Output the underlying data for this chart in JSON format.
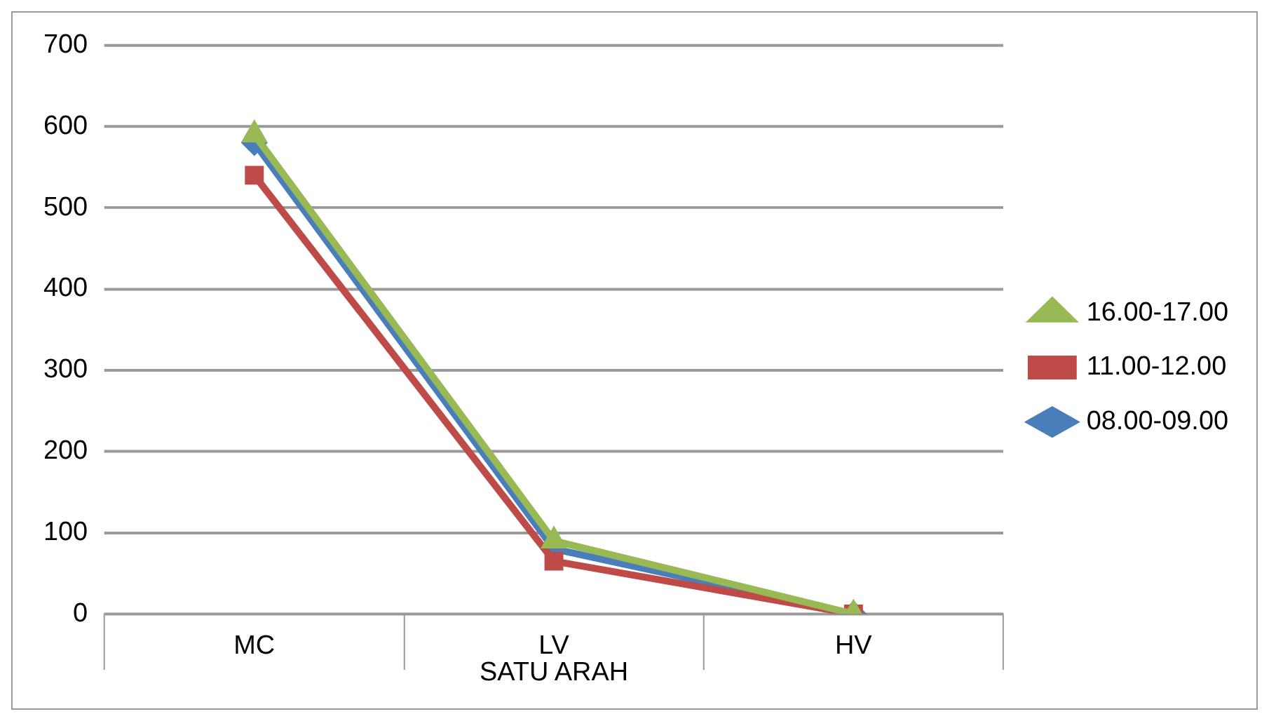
{
  "chart_data": {
    "type": "line",
    "categories": [
      "MC",
      "LV",
      "HV"
    ],
    "xlabel": "SATU ARAH",
    "ylim": [
      0,
      700
    ],
    "yticks": [
      0,
      100,
      200,
      300,
      400,
      500,
      600,
      700
    ],
    "grid": "y",
    "legend": "right",
    "line_style": "solid",
    "series": [
      {
        "name": "08.00-09.00",
        "color": "#4a7ebb",
        "marker": "diamond",
        "values": [
          580,
          80,
          0
        ]
      },
      {
        "name": "11.00-12.00",
        "color": "#be4b48",
        "marker": "square",
        "values": [
          540,
          65,
          0
        ]
      },
      {
        "name": "16.00-17.00",
        "color": "#98b954",
        "marker": "triangle",
        "values": [
          590,
          90,
          0
        ]
      }
    ]
  }
}
